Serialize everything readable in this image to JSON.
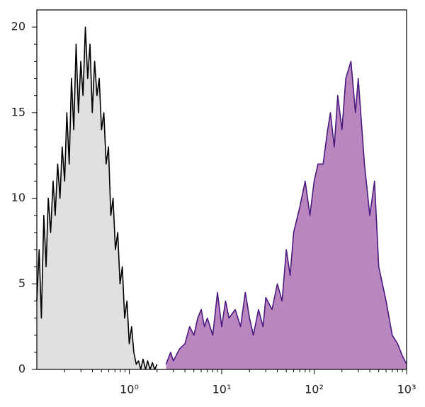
{
  "chart_data": {
    "type": "area",
    "xscale": "log",
    "xlim": [
      0.1,
      1000
    ],
    "ylim": [
      0,
      21
    ],
    "xticks": [
      {
        "value": 1,
        "label": "10⁰"
      },
      {
        "value": 10,
        "label": "10¹"
      },
      {
        "value": 100,
        "label": "10²"
      },
      {
        "value": 1000,
        "label": "10³"
      }
    ],
    "xticks_minor": [
      0.2,
      0.3,
      0.4,
      0.5,
      0.6,
      0.7,
      0.8,
      0.9,
      2,
      3,
      4,
      5,
      6,
      7,
      8,
      9,
      20,
      30,
      40,
      50,
      60,
      70,
      80,
      90,
      200,
      300,
      400,
      500,
      600,
      700,
      800,
      900
    ],
    "yticks": [
      0,
      5,
      10,
      15,
      20
    ],
    "yticks_minor": [
      1,
      2,
      3,
      4,
      6,
      7,
      8,
      9,
      11,
      12,
      13,
      14,
      16,
      17,
      18,
      19
    ],
    "series": [
      {
        "color": "#000000",
        "fill": "#e0e0e0",
        "x": [
          0.1,
          0.106,
          0.112,
          0.119,
          0.126,
          0.133,
          0.141,
          0.15,
          0.158,
          0.168,
          0.178,
          0.188,
          0.2,
          0.211,
          0.224,
          0.237,
          0.251,
          0.266,
          0.282,
          0.299,
          0.316,
          0.335,
          0.355,
          0.376,
          0.398,
          0.422,
          0.447,
          0.473,
          0.501,
          0.531,
          0.562,
          0.596,
          0.631,
          0.668,
          0.708,
          0.75,
          0.794,
          0.841,
          0.891,
          0.944,
          1,
          1.06,
          1.12,
          1.19,
          1.26,
          1.33,
          1.41,
          1.5,
          1.58,
          1.68,
          1.78,
          1.88,
          2
        ],
        "values": [
          4,
          7,
          3,
          9,
          6,
          10,
          8,
          11,
          9,
          12,
          10,
          13,
          11,
          15,
          12,
          17,
          14,
          19,
          15,
          18,
          16,
          20,
          17,
          19,
          15,
          18,
          16,
          17,
          14,
          15,
          12,
          13,
          9,
          10,
          7,
          8,
          5,
          6,
          3,
          4,
          1.5,
          2.5,
          1,
          0.3,
          0.5,
          0,
          0.6,
          0,
          0.5,
          0,
          0.4,
          0,
          0.3
        ]
      },
      {
        "color": "#4b1a7e",
        "fill": "#b986bf",
        "x": [
          2.5,
          2.8,
          3,
          3.5,
          4,
          4.5,
          5,
          5.5,
          6,
          6.5,
          7,
          8,
          9,
          10,
          11,
          12,
          14,
          16,
          18,
          20,
          22,
          25,
          28,
          30,
          35,
          40,
          45,
          50,
          55,
          60,
          70,
          80,
          90,
          100,
          110,
          125,
          140,
          150,
          165,
          180,
          200,
          220,
          250,
          280,
          300,
          350,
          400,
          450,
          500,
          600,
          700,
          800,
          900,
          1000
        ],
        "values": [
          0.3,
          1,
          0.5,
          1.2,
          1.5,
          2.5,
          2,
          3,
          3.5,
          2.5,
          3,
          2,
          4.5,
          2.5,
          4,
          3,
          3.5,
          2.5,
          4.5,
          3,
          2,
          3.5,
          2.5,
          4.2,
          3.5,
          5,
          4,
          7,
          5.5,
          8,
          9.5,
          11,
          9,
          11,
          12,
          12,
          14,
          15,
          13,
          16,
          14,
          17,
          18,
          15,
          17,
          12,
          9,
          11,
          6,
          4,
          2,
          1.5,
          0.8,
          0.3
        ]
      }
    ]
  }
}
